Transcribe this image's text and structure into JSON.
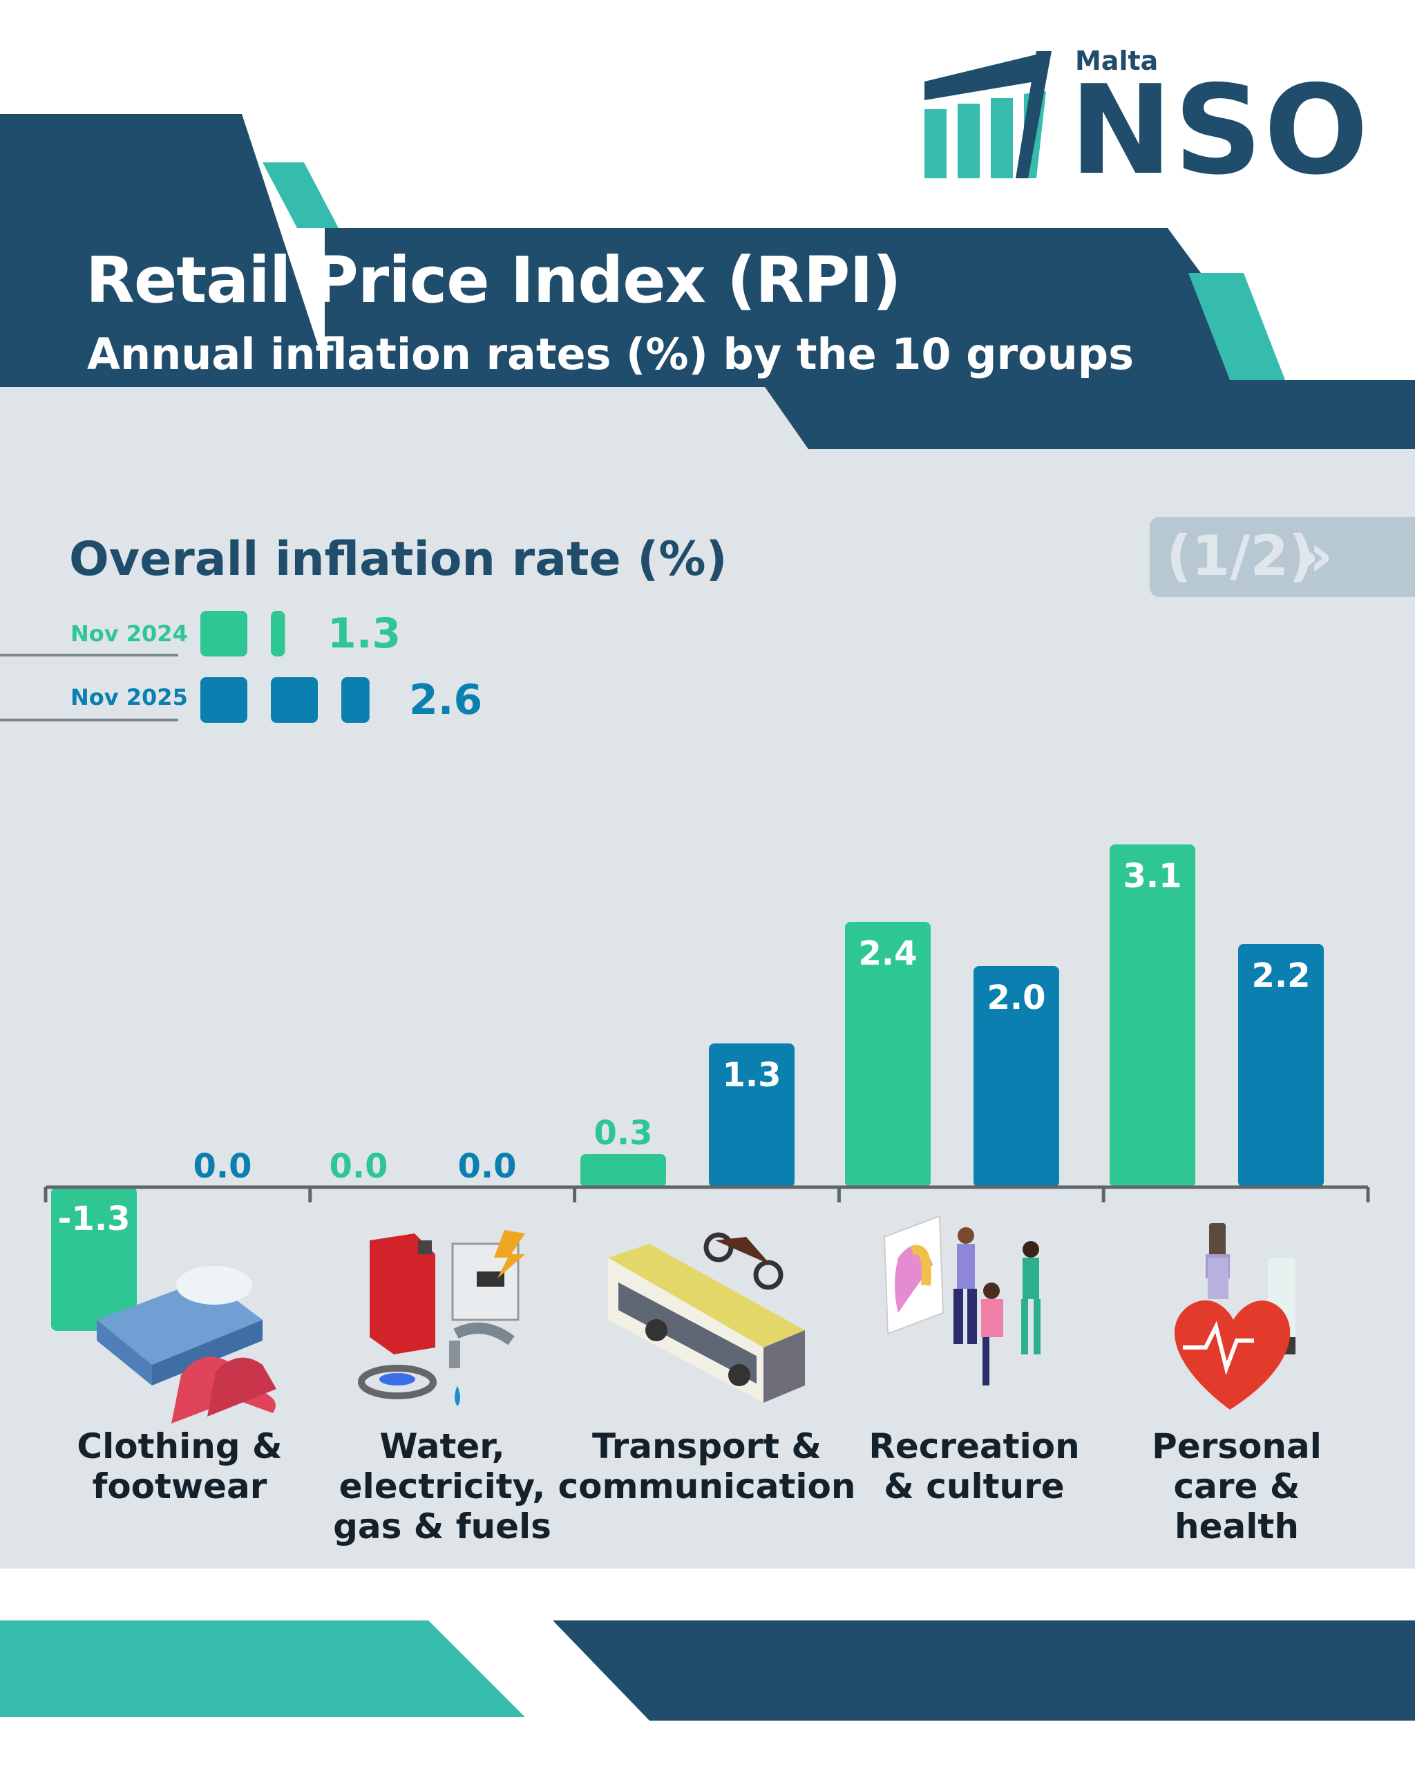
{
  "header": {
    "title": "Retail Price Index (RPI)",
    "subtitle": "Annual inflation rates (%) by the 10 groups"
  },
  "logo": {
    "country": "Malta",
    "name": "NSO"
  },
  "pager": {
    "text": "(1/2)",
    "arrows": "»"
  },
  "overall": {
    "title": "Overall inflation rate (%)",
    "items": [
      {
        "label": "Nov 2024",
        "value": "1.3",
        "rate": 1.3,
        "color": "#2ec693"
      },
      {
        "label": "Nov 2025",
        "value": "2.6",
        "rate": 2.6,
        "color": "#0a7fb0"
      }
    ]
  },
  "colors": {
    "navy": "#1f4d6b",
    "teal": "#35bcad",
    "panel": "#dfe4e9",
    "green": "#2ec693",
    "blue": "#0a7fb0"
  },
  "chart_data": {
    "type": "bar",
    "title": "",
    "xlabel": "",
    "ylabel": "",
    "categories": [
      "Clothing & footwear",
      "Water, electricity, gas & fuels",
      "Transport & communication",
      "Recreation & culture",
      "Personal care & health"
    ],
    "category_lines": [
      [
        "Clothing &",
        "footwear"
      ],
      [
        "Water,",
        "electricity,",
        "gas & fuels"
      ],
      [
        "Transport &",
        "communication"
      ],
      [
        "Recreation",
        "& culture"
      ],
      [
        "Personal",
        "care &",
        "health"
      ]
    ],
    "series": [
      {
        "name": "Nov 2024",
        "color": "#2ec693",
        "values": [
          -1.3,
          0.0,
          0.3,
          2.4,
          3.1
        ],
        "labels": [
          "-1.3",
          "0.0",
          "0.3",
          "2.4",
          "3.1"
        ]
      },
      {
        "name": "Nov 2025",
        "color": "#0a7fb0",
        "values": [
          0.0,
          0.0,
          1.3,
          2.0,
          2.2
        ],
        "labels": [
          "0.0",
          "0.0",
          "1.3",
          "2.0",
          "2.2"
        ]
      }
    ],
    "grid": false,
    "legend": "top-left"
  }
}
